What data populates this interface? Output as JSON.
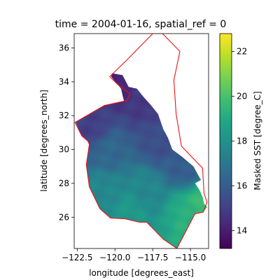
{
  "chart_data": {
    "type": "heatmap",
    "title": "time = 2004-01-16, spatial_ref = 0",
    "xlabel": "longitude [degrees_east]",
    "ylabel": "latitude [degrees_north]",
    "xlim": [
      -122.7,
      -113.8
    ],
    "ylim": [
      24.15,
      36.85
    ],
    "x_ticks": [
      -122.5,
      -120.0,
      -117.5,
      -115.0
    ],
    "x_tick_labels": [
      "−122.5",
      "−120.0",
      "−117.5",
      "−115.0"
    ],
    "y_ticks": [
      26,
      28,
      30,
      32,
      34,
      36
    ],
    "y_tick_labels": [
      "26",
      "28",
      "30",
      "32",
      "34",
      "36"
    ],
    "grid": false,
    "colormap": "viridis",
    "colorbar": {
      "label": "Masked SST [degree_C]",
      "range": [
        13.2,
        22.8
      ],
      "ticks": [
        14,
        16,
        18,
        20,
        22
      ],
      "tick_labels": [
        "14",
        "16",
        "18",
        "20",
        "22"
      ]
    },
    "boundary_color": "#ee1111",
    "boundary": [
      [
        -116.85,
        36.85
      ],
      [
        -115.7,
        35.8
      ],
      [
        -116.1,
        34.1
      ],
      [
        -115.95,
        32.1
      ],
      [
        -115.6,
        30.2
      ],
      [
        -114.2,
        28.9
      ],
      [
        -114.1,
        27.4
      ],
      [
        -113.9,
        26.9
      ],
      [
        -114.15,
        26.3
      ],
      [
        -114.7,
        26.2
      ],
      [
        -115.9,
        24.15
      ],
      [
        -116.8,
        24.7
      ],
      [
        -117.9,
        25.7
      ],
      [
        -118.4,
        25.7
      ],
      [
        -119.3,
        25.9
      ],
      [
        -120.3,
        25.95
      ],
      [
        -121.0,
        26.5
      ],
      [
        -121.7,
        27.8
      ],
      [
        -121.9,
        29.1
      ],
      [
        -121.7,
        30.3
      ],
      [
        -121.8,
        30.5
      ],
      [
        -122.2,
        30.8
      ],
      [
        -122.65,
        31.6
      ],
      [
        -120.7,
        32.6
      ],
      [
        -119.2,
        32.9
      ],
      [
        -119.0,
        33.3
      ],
      [
        -119.7,
        33.75
      ],
      [
        -120.35,
        34.3
      ],
      [
        -119.2,
        35.3
      ],
      [
        -117.5,
        36.85
      ]
    ],
    "sst_region": [
      [
        -122.6,
        31.6
      ],
      [
        -120.7,
        32.6
      ],
      [
        -119.4,
        32.85
      ],
      [
        -119.6,
        33.6
      ],
      [
        -120.25,
        34.3
      ],
      [
        -120.2,
        34.5
      ],
      [
        -119.5,
        34.4
      ],
      [
        -119.1,
        33.7
      ],
      [
        -118.55,
        33.6
      ],
      [
        -118.1,
        33.1
      ],
      [
        -117.6,
        32.6
      ],
      [
        -117.15,
        32.1
      ],
      [
        -116.8,
        31.2
      ],
      [
        -116.5,
        30.7
      ],
      [
        -116.2,
        30.0
      ],
      [
        -115.6,
        29.6
      ],
      [
        -115.2,
        29.3
      ],
      [
        -114.8,
        29.0
      ],
      [
        -114.5,
        28.5
      ],
      [
        -114.3,
        28.2
      ],
      [
        -114.7,
        28.0
      ],
      [
        -114.4,
        27.6
      ],
      [
        -114.2,
        27.2
      ],
      [
        -114.1,
        26.8
      ],
      [
        -113.9,
        26.6
      ],
      [
        -114.15,
        26.3
      ],
      [
        -114.7,
        26.2
      ],
      [
        -115.9,
        24.15
      ],
      [
        -116.8,
        24.7
      ],
      [
        -117.9,
        25.7
      ],
      [
        -118.4,
        25.7
      ],
      [
        -119.3,
        25.9
      ],
      [
        -120.3,
        25.95
      ],
      [
        -121.0,
        26.5
      ],
      [
        -121.7,
        27.8
      ],
      [
        -121.9,
        29.1
      ],
      [
        -121.7,
        30.3
      ],
      [
        -121.8,
        30.5
      ],
      [
        -122.2,
        30.8
      ]
    ],
    "sst_field": {
      "description_values_degC": "warm south-east, cool north-west",
      "anchors": [
        {
          "lon": -119.8,
          "lat": 34.0,
          "value": 14.2
        },
        {
          "lon": -118.0,
          "lat": 32.8,
          "value": 14.8
        },
        {
          "lon": -121.5,
          "lat": 31.3,
          "value": 15.0
        },
        {
          "lon": -117.0,
          "lat": 30.5,
          "value": 15.5
        },
        {
          "lon": -120.5,
          "lat": 30.0,
          "value": 16.4
        },
        {
          "lon": -115.5,
          "lat": 29.0,
          "value": 16.0
        },
        {
          "lon": -120.8,
          "lat": 27.5,
          "value": 17.6
        },
        {
          "lon": -118.0,
          "lat": 27.5,
          "value": 17.6
        },
        {
          "lon": -119.0,
          "lat": 26.3,
          "value": 18.3
        },
        {
          "lon": -115.0,
          "lat": 26.3,
          "value": 19.2
        },
        {
          "lon": -114.3,
          "lat": 26.5,
          "value": 19.8
        }
      ]
    }
  }
}
